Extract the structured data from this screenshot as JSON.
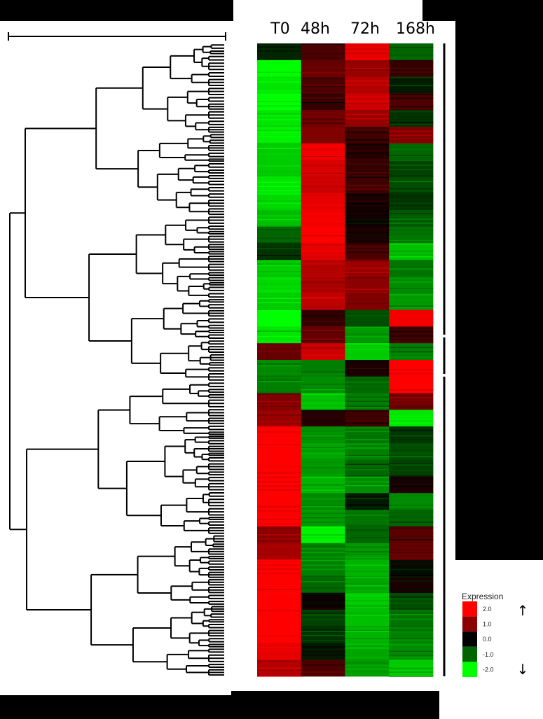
{
  "chart_data": {
    "type": "heatmap",
    "columns": [
      "T0",
      "48h",
      "72h",
      "168h"
    ],
    "row_blocks": [
      {
        "values": [
          -0.3,
          0.6,
          1.8,
          -0.8
        ]
      },
      {
        "values": [
          -2.0,
          0.8,
          1.2,
          0.4
        ]
      },
      {
        "values": [
          -1.8,
          0.6,
          1.4,
          -0.2
        ]
      },
      {
        "values": [
          -2.0,
          0.4,
          1.6,
          0.6
        ]
      },
      {
        "values": [
          -1.8,
          0.9,
          1.2,
          -0.4
        ]
      },
      {
        "values": [
          -1.9,
          1.0,
          0.5,
          1.0
        ]
      },
      {
        "values": [
          -1.6,
          1.9,
          0.3,
          -0.8
        ]
      },
      {
        "values": [
          -1.6,
          1.7,
          0.4,
          -0.5
        ]
      },
      {
        "values": [
          -1.8,
          1.6,
          0.5,
          -0.6
        ]
      },
      {
        "values": [
          -1.7,
          1.8,
          0.2,
          -0.4
        ]
      },
      {
        "values": [
          -1.5,
          1.9,
          0.1,
          -0.7
        ]
      },
      {
        "values": [
          -0.8,
          2.0,
          0.2,
          -0.9
        ]
      },
      {
        "values": [
          -0.4,
          1.8,
          0.6,
          -1.5
        ]
      },
      {
        "values": [
          -1.6,
          1.4,
          1.2,
          -0.9
        ]
      },
      {
        "values": [
          -1.7,
          1.3,
          1.1,
          -1.1
        ]
      },
      {
        "values": [
          -1.6,
          1.5,
          1.0,
          -1.2
        ]
      },
      {
        "values": [
          -2.0,
          0.4,
          -0.6,
          1.9
        ]
      },
      {
        "values": [
          -1.8,
          0.8,
          -1.2,
          0.5
        ]
      },
      {
        "values": [
          0.8,
          1.6,
          -1.6,
          -1.0
        ]
      },
      {
        "values": [
          -1.1,
          -1.0,
          0.2,
          2.0
        ]
      },
      {
        "values": [
          -1.0,
          -1.1,
          -0.8,
          2.0
        ]
      },
      {
        "values": [
          1.0,
          -1.5,
          -1.0,
          0.9
        ]
      },
      {
        "values": [
          1.2,
          0.3,
          0.5,
          -1.8
        ]
      },
      {
        "values": [
          2.0,
          -1.1,
          -0.9,
          -0.4
        ]
      },
      {
        "values": [
          2.0,
          -1.3,
          -1.0,
          -0.6
        ]
      },
      {
        "values": [
          2.0,
          -1.2,
          -0.8,
          -0.5
        ]
      },
      {
        "values": [
          2.0,
          -1.4,
          -1.1,
          0.2
        ]
      },
      {
        "values": [
          2.0,
          -1.1,
          -0.2,
          -1.1
        ]
      },
      {
        "values": [
          2.0,
          -1.2,
          -0.9,
          -0.8
        ]
      },
      {
        "values": [
          1.1,
          -1.9,
          -0.8,
          0.7
        ]
      },
      {
        "values": [
          1.3,
          -1.0,
          -1.2,
          0.8
        ]
      },
      {
        "values": [
          2.0,
          -1.0,
          -1.4,
          -0.1
        ]
      },
      {
        "values": [
          2.0,
          -0.8,
          -1.3,
          0.2
        ]
      },
      {
        "values": [
          2.0,
          0.1,
          -1.6,
          -0.6
        ]
      },
      {
        "values": [
          2.0,
          -0.5,
          -1.5,
          -0.9
        ]
      },
      {
        "values": [
          2.0,
          -0.4,
          -1.4,
          -1.0
        ]
      },
      {
        "values": [
          1.8,
          -0.2,
          -1.3,
          -1.1
        ]
      },
      {
        "values": [
          1.4,
          0.6,
          -1.2,
          -1.6
        ]
      }
    ],
    "legend": {
      "title": "Expression",
      "scale": [
        {
          "label": "2.0",
          "color": "#ff0000"
        },
        {
          "label": "1.0",
          "color": "#8b0000"
        },
        {
          "label": "0.0",
          "color": "#000000"
        },
        {
          "label": "-1.0",
          "color": "#006400"
        },
        {
          "label": "-2.0",
          "color": "#00ff00"
        }
      ],
      "up_arrow": "↑",
      "down_arrow": "↓"
    },
    "colors": {
      "high": "#ff0000",
      "mid": "#000000",
      "low": "#00ff00"
    }
  }
}
